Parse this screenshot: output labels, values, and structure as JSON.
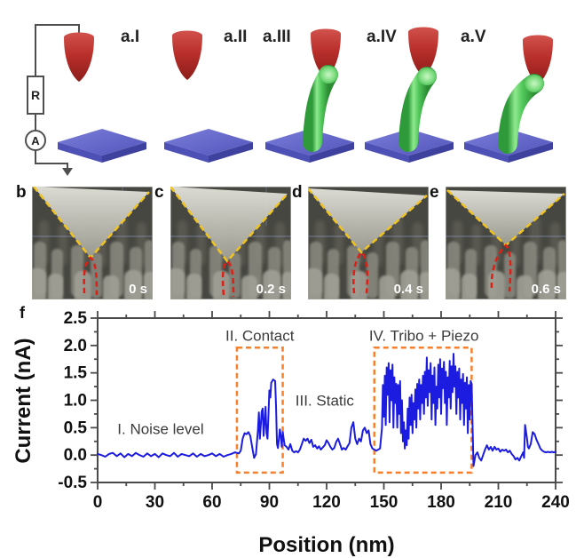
{
  "figure": {
    "background": "#ffffff"
  },
  "schematics": {
    "panels": [
      {
        "label": "a.I"
      },
      {
        "label": "a.II"
      },
      {
        "label": "a.III"
      },
      {
        "label": "a.IV"
      },
      {
        "label": "a.V"
      }
    ],
    "circuit": {
      "resistor_label": "R",
      "ammeter_label": "A"
    },
    "colors": {
      "tip_red": "#b5312e",
      "wire_green": "#44b84e",
      "substrate_blue": "#5c5fc4"
    }
  },
  "sem": {
    "panels": [
      {
        "label": "b",
        "time": "0 s"
      },
      {
        "label": "c",
        "time": "0.2 s"
      },
      {
        "label": "d",
        "time": "0.4 s"
      },
      {
        "label": "e",
        "time": "0.6 s"
      }
    ],
    "overlay_colors": {
      "tip_outline_yellow": "#f0c321",
      "wire_outline_red": "#dd2016"
    }
  },
  "chart_data": {
    "type": "line",
    "panel_label": "f",
    "xlabel": "Position (nm)",
    "ylabel": "Current (nA)",
    "xlim": [
      0,
      240
    ],
    "ylim": [
      -0.5,
      2.5
    ],
    "xticks": [
      0,
      30,
      60,
      90,
      120,
      150,
      180,
      210,
      240
    ],
    "yticks": [
      -0.5,
      0.0,
      0.5,
      1.0,
      1.5,
      2.0,
      2.5
    ],
    "x_minor_step": 15,
    "y_minor_step": 0.25,
    "grid": false,
    "legend": "none",
    "line_color": "#1c1ce0",
    "box_color": "#f5802e",
    "regions": [
      {
        "x1": 73,
        "x2": 97,
        "y1": -0.32,
        "y2": 1.96
      },
      {
        "x1": 145,
        "x2": 196,
        "y1": -0.32,
        "y2": 1.96
      }
    ],
    "annotations": [
      {
        "text": "I. Noise level",
        "x": 33,
        "y": 0.48
      },
      {
        "text": "II. Contact",
        "x": 85,
        "y": 2.18
      },
      {
        "text": "III. Static",
        "x": 119,
        "y": 1.0
      },
      {
        "text": "IV. Tribo + Piezo",
        "x": 171,
        "y": 2.18
      }
    ],
    "series": [
      {
        "name": "current",
        "points": [
          [
            0,
            0.02
          ],
          [
            2,
            0.0
          ],
          [
            4,
            -0.03
          ],
          [
            6,
            0.02
          ],
          [
            8,
            0.04
          ],
          [
            10,
            -0.02
          ],
          [
            12,
            0.03
          ],
          [
            14,
            -0.04
          ],
          [
            16,
            0.02
          ],
          [
            18,
            -0.02
          ],
          [
            20,
            0.04
          ],
          [
            22,
            0.0
          ],
          [
            24,
            -0.03
          ],
          [
            26,
            0.03
          ],
          [
            28,
            -0.02
          ],
          [
            30,
            0.02
          ],
          [
            32,
            -0.04
          ],
          [
            34,
            0.03
          ],
          [
            36,
            0.0
          ],
          [
            38,
            -0.02
          ],
          [
            40,
            0.04
          ],
          [
            42,
            -0.03
          ],
          [
            44,
            0.02
          ],
          [
            46,
            0.0
          ],
          [
            48,
            -0.02
          ],
          [
            50,
            0.03
          ],
          [
            52,
            -0.03
          ],
          [
            54,
            0.02
          ],
          [
            56,
            -0.02
          ],
          [
            58,
            0.0
          ],
          [
            60,
            0.03
          ],
          [
            62,
            -0.02
          ],
          [
            64,
            0.02
          ],
          [
            66,
            -0.03
          ],
          [
            68,
            0.0
          ],
          [
            70,
            0.02
          ],
          [
            72,
            0.05
          ],
          [
            74,
            0.03
          ],
          [
            75,
            0.08
          ],
          [
            76,
            0.3
          ],
          [
            77,
            0.4
          ],
          [
            78,
            0.38
          ],
          [
            79,
            0.42
          ],
          [
            80,
            0.35
          ],
          [
            81,
            0.15
          ],
          [
            82,
            -0.05
          ],
          [
            83,
            0.02
          ],
          [
            84,
            0.45
          ],
          [
            84.5,
            0.78
          ],
          [
            85,
            0.3
          ],
          [
            86,
            0.8
          ],
          [
            86.5,
            0.85
          ],
          [
            87,
            0.35
          ],
          [
            87.5,
            0.6
          ],
          [
            88,
            0.88
          ],
          [
            88.5,
            0.4
          ],
          [
            89,
            0.3
          ],
          [
            89.5,
            0.7
          ],
          [
            90,
            1.18
          ],
          [
            90.5,
            1.05
          ],
          [
            91,
            1.32
          ],
          [
            92,
            1.38
          ],
          [
            93,
            1.35
          ],
          [
            93.5,
            0.9
          ],
          [
            94,
            0.2
          ],
          [
            94.5,
            0.13
          ],
          [
            95,
            0.3
          ],
          [
            95.5,
            0.47
          ],
          [
            96,
            0.35
          ],
          [
            96.5,
            0.15
          ],
          [
            97,
            0.42
          ],
          [
            97.5,
            0.3
          ],
          [
            98,
            0.18
          ],
          [
            99,
            0.15
          ],
          [
            100,
            0.1
          ],
          [
            101,
            0.2
          ],
          [
            102,
            0.08
          ],
          [
            103,
            0.05
          ],
          [
            104,
            0.07
          ],
          [
            105,
            0.05
          ],
          [
            106,
            0.1
          ],
          [
            107,
            0.2
          ],
          [
            108,
            0.3
          ],
          [
            109,
            0.26
          ],
          [
            110,
            0.3
          ],
          [
            111,
            0.22
          ],
          [
            112,
            0.28
          ],
          [
            113,
            0.15
          ],
          [
            114,
            0.18
          ],
          [
            115,
            0.12
          ],
          [
            116,
            0.16
          ],
          [
            117,
            0.1
          ],
          [
            118,
            0.14
          ],
          [
            119,
            0.18
          ],
          [
            120,
            0.27
          ],
          [
            121,
            0.22
          ],
          [
            122,
            0.15
          ],
          [
            123,
            0.1
          ],
          [
            124,
            0.13
          ],
          [
            125,
            0.24
          ],
          [
            126,
            0.3
          ],
          [
            127,
            0.2
          ],
          [
            128,
            0.1
          ],
          [
            129,
            0.13
          ],
          [
            130,
            0.1
          ],
          [
            131,
            0.16
          ],
          [
            132,
            0.22
          ],
          [
            133,
            0.5
          ],
          [
            134,
            0.6
          ],
          [
            135,
            0.3
          ],
          [
            136,
            0.2
          ],
          [
            137,
            0.3
          ],
          [
            138,
            0.25
          ],
          [
            139,
            0.45
          ],
          [
            140,
            0.5
          ],
          [
            141,
            0.4
          ],
          [
            142,
            0.45
          ],
          [
            143,
            0.2
          ],
          [
            144,
            0.12
          ],
          [
            145,
            0.1
          ],
          [
            146,
            0.08
          ],
          [
            147,
            0.1
          ],
          [
            148,
            0.12
          ],
          [
            149,
            0.5
          ],
          [
            149.5,
            1.28
          ],
          [
            150,
            0.7
          ],
          [
            150.5,
            1.45
          ],
          [
            151,
            0.55
          ],
          [
            151.5,
            1.6
          ],
          [
            152,
            1.1
          ],
          [
            152.5,
            1.68
          ],
          [
            153,
            0.6
          ],
          [
            153.5,
            1.55
          ],
          [
            154,
            1.0
          ],
          [
            154.5,
            1.65
          ],
          [
            155,
            0.5
          ],
          [
            155.5,
            1.42
          ],
          [
            156,
            0.95
          ],
          [
            156.5,
            1.3
          ],
          [
            157,
            0.5
          ],
          [
            157.5,
            1.28
          ],
          [
            158,
            0.75
          ],
          [
            158.5,
            1.35
          ],
          [
            159,
            0.4
          ],
          [
            159.5,
            1.0
          ],
          [
            160,
            0.25
          ],
          [
            160.5,
            0.6
          ],
          [
            161,
            0.12
          ],
          [
            161.5,
            0.45
          ],
          [
            162,
            0.18
          ],
          [
            162.5,
            0.85
          ],
          [
            163,
            0.3
          ],
          [
            163.5,
            1.05
          ],
          [
            164,
            0.55
          ],
          [
            164.5,
            1.1
          ],
          [
            165,
            0.4
          ],
          [
            165.5,
            0.95
          ],
          [
            166,
            0.65
          ],
          [
            166.5,
            1.2
          ],
          [
            167,
            0.5
          ],
          [
            167.5,
            1.3
          ],
          [
            168,
            0.85
          ],
          [
            168.5,
            1.38
          ],
          [
            169,
            0.65
          ],
          [
            169.5,
            1.28
          ],
          [
            170,
            0.95
          ],
          [
            170.5,
            1.45
          ],
          [
            171,
            0.75
          ],
          [
            171.5,
            1.52
          ],
          [
            172,
            1.05
          ],
          [
            172.5,
            1.78
          ],
          [
            173,
            0.9
          ],
          [
            173.5,
            1.55
          ],
          [
            174,
            1.15
          ],
          [
            174.5,
            1.68
          ],
          [
            175,
            0.65
          ],
          [
            175.5,
            1.45
          ],
          [
            176,
            0.95
          ],
          [
            176.5,
            1.6
          ],
          [
            177,
            0.55
          ],
          [
            177.5,
            1.25
          ],
          [
            178,
            0.85
          ],
          [
            178.5,
            1.65
          ],
          [
            179,
            1.05
          ],
          [
            179.5,
            1.75
          ],
          [
            180,
            0.75
          ],
          [
            180.5,
            1.58
          ],
          [
            181,
            1.22
          ],
          [
            181.5,
            1.7
          ],
          [
            182,
            0.95
          ],
          [
            182.5,
            1.52
          ],
          [
            183,
            0.55
          ],
          [
            183.5,
            1.42
          ],
          [
            184,
            1.05
          ],
          [
            184.5,
            1.72
          ],
          [
            185,
            0.85
          ],
          [
            185.5,
            1.62
          ],
          [
            186,
            1.15
          ],
          [
            186.5,
            1.85
          ],
          [
            187,
            1.25
          ],
          [
            187.5,
            1.62
          ],
          [
            188,
            0.75
          ],
          [
            188.5,
            1.52
          ],
          [
            189,
            1.05
          ],
          [
            189.5,
            1.58
          ],
          [
            190,
            0.65
          ],
          [
            190.5,
            1.38
          ],
          [
            191,
            0.95
          ],
          [
            191.5,
            1.48
          ],
          [
            192,
            0.55
          ],
          [
            192.5,
            1.32
          ],
          [
            193,
            0.85
          ],
          [
            193.5,
            1.42
          ],
          [
            194,
            0.4
          ],
          [
            194.5,
            1.28
          ],
          [
            195,
            0.65
          ],
          [
            195.5,
            1.35
          ],
          [
            196,
            1.3
          ],
          [
            196.5,
            0.5
          ],
          [
            197,
            -0.2
          ],
          [
            198,
            0.0
          ],
          [
            199,
            0.05
          ],
          [
            200,
            -0.05
          ],
          [
            201,
            -0.1
          ],
          [
            202,
            0.0
          ],
          [
            203,
            0.1
          ],
          [
            204,
            0.18
          ],
          [
            205,
            0.1
          ],
          [
            206,
            0.15
          ],
          [
            207,
            0.08
          ],
          [
            208,
            0.15
          ],
          [
            209,
            0.1
          ],
          [
            210,
            0.12
          ],
          [
            211,
            0.06
          ],
          [
            212,
            0.1
          ],
          [
            213,
            0.08
          ],
          [
            214,
            0.1
          ],
          [
            215,
            0.05
          ],
          [
            216,
            0.08
          ],
          [
            217,
            0.02
          ],
          [
            218,
            -0.02
          ],
          [
            219,
            -0.08
          ],
          [
            220,
            -0.05
          ],
          [
            221,
            -0.1
          ],
          [
            222,
            -0.02
          ],
          [
            223,
            0.05
          ],
          [
            223.5,
            -0.05
          ],
          [
            224,
            0.55
          ],
          [
            225,
            0.3
          ],
          [
            225.5,
            0.15
          ],
          [
            226,
            0.12
          ],
          [
            227,
            0.2
          ],
          [
            228,
            0.42
          ],
          [
            229,
            0.38
          ],
          [
            230,
            0.28
          ],
          [
            231,
            0.2
          ],
          [
            232,
            0.12
          ],
          [
            233,
            0.08
          ],
          [
            234,
            0.06
          ],
          [
            235,
            0.05
          ],
          [
            236,
            0.06
          ],
          [
            237,
            0.05
          ],
          [
            238,
            0.06
          ],
          [
            239,
            0.05
          ],
          [
            240,
            0.06
          ]
        ]
      }
    ]
  }
}
